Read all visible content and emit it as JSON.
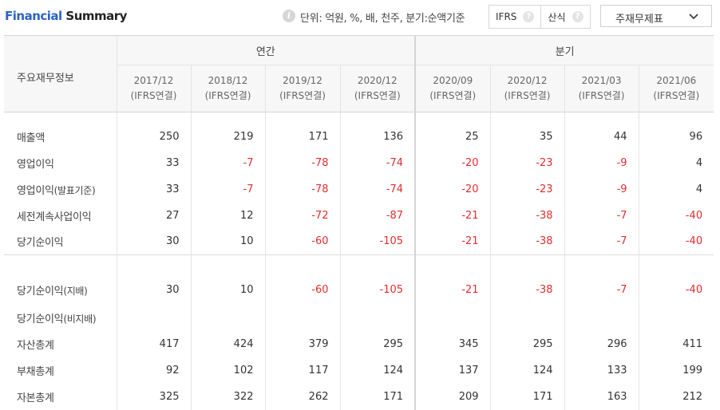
{
  "header": {
    "title_part1": "Financial",
    "title_part2": "Summary",
    "unit_text": "단위: 억원, %, 배, 천주, 분기:순액기준",
    "ifrs_label": "IFRS",
    "calc_label": "산식",
    "select_label": "주재무제표"
  },
  "table": {
    "corner_label": "주요재무정보",
    "group_annual": "연간",
    "group_quarter": "분기",
    "periods": [
      {
        "date": "2017/12",
        "basis": "(IFRS연결)"
      },
      {
        "date": "2018/12",
        "basis": "(IFRS연결)"
      },
      {
        "date": "2019/12",
        "basis": "(IFRS연결)"
      },
      {
        "date": "2020/12",
        "basis": "(IFRS연결)"
      },
      {
        "date": "2020/09",
        "basis": "(IFRS연결)"
      },
      {
        "date": "2020/12",
        "basis": "(IFRS연결)"
      },
      {
        "date": "2021/03",
        "basis": "(IFRS연결)"
      },
      {
        "date": "2021/06",
        "basis": "(IFRS연결)"
      }
    ],
    "rows": [
      {
        "label": "매출액",
        "sub": "",
        "values": [
          "250",
          "219",
          "171",
          "136",
          "25",
          "35",
          "44",
          "96"
        ]
      },
      {
        "label": "영업이익",
        "sub": "",
        "values": [
          "33",
          "-7",
          "-78",
          "-74",
          "-20",
          "-23",
          "-9",
          "4"
        ]
      },
      {
        "label": "영업이익",
        "sub": "(발표기준)",
        "values": [
          "33",
          "-7",
          "-78",
          "-74",
          "-20",
          "-23",
          "-9",
          "4"
        ]
      },
      {
        "label": "세전계속사업이익",
        "sub": "",
        "values": [
          "27",
          "12",
          "-72",
          "-87",
          "-21",
          "-38",
          "-7",
          "-40"
        ]
      },
      {
        "label": "당기순이익",
        "sub": "",
        "values": [
          "30",
          "10",
          "-60",
          "-105",
          "-21",
          "-38",
          "-7",
          "-40"
        ]
      },
      {
        "label": "당기순이익",
        "sub": "(지배)",
        "values": [
          "30",
          "10",
          "-60",
          "-105",
          "-21",
          "-38",
          "-7",
          "-40"
        ]
      },
      {
        "label": "당기순이익",
        "sub": "(비지배)",
        "values": [
          "",
          "",
          "",
          "",
          "",
          "",
          "",
          ""
        ]
      },
      {
        "label": "자산총계",
        "sub": "",
        "values": [
          "417",
          "424",
          "379",
          "295",
          "345",
          "295",
          "296",
          "411"
        ]
      },
      {
        "label": "부채총계",
        "sub": "",
        "values": [
          "92",
          "102",
          "117",
          "124",
          "137",
          "124",
          "133",
          "199"
        ]
      },
      {
        "label": "자본총계",
        "sub": "",
        "values": [
          "325",
          "322",
          "262",
          "171",
          "209",
          "171",
          "163",
          "212"
        ]
      }
    ],
    "negative_color": "#e02e2e"
  },
  "icons": {
    "info": "info-icon",
    "help": "question-icon",
    "dropdown": "chevron-down-icon"
  }
}
